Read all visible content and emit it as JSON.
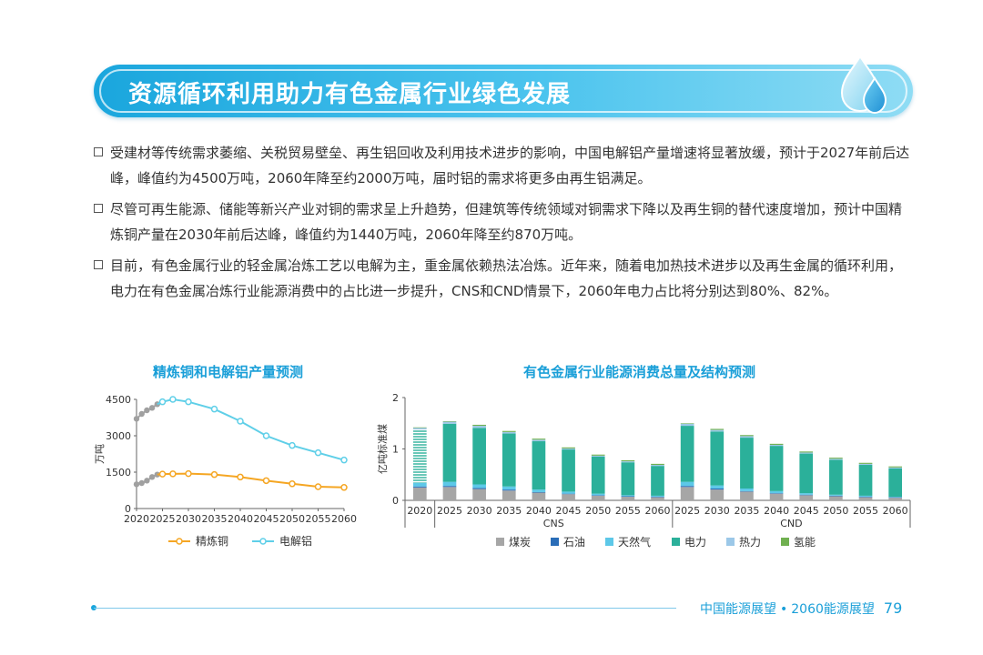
{
  "banner": {
    "title": "资源循环利用助力有色金属行业绿色发展"
  },
  "bullets": [
    "受建材等传统需求萎缩、关税贸易壁垒、再生铝回收及利用技术进步的影响，中国电解铝产量增速将显著放缓，预计于2027年前后达峰，峰值约为4500万吨，2060年降至约2000万吨，届时铝的需求将更多由再生铝满足。",
    "尽管可再生能源、储能等新兴产业对铜的需求呈上升趋势，但建筑等传统领域对铜需求下降以及再生铜的替代速度增加，预计中国精炼铜产量在2030年前后达峰，峰值约为1440万吨，2060年降至约870万吨。",
    "目前，有色金属行业的轻金属冶炼工艺以电解为主，重金属依赖热法冶炼。近年来，随着电加热技术进步以及再生金属的循环利用，电力在有色金属冶炼行业能源消费中的占比进一步提升，CNS和CND情景下，2060年电力占比将分别达到80%、82%。"
  ],
  "chart_data": [
    {
      "type": "line",
      "title": "精炼铜和电解铝产量预测",
      "ylabel": "万吨",
      "ylim": [
        0,
        4500
      ],
      "yticks": [
        "0",
        "1500",
        "3000",
        "4500"
      ],
      "categories": [
        "2020",
        "2025",
        "2030",
        "2035",
        "2040",
        "2045",
        "2050",
        "2055",
        "2060"
      ],
      "series": [
        {
          "name": "精炼铜",
          "color": "#f5a623",
          "history": {
            "x": [
              2020,
              2021,
              2022,
              2023,
              2024
            ],
            "y": [
              1000,
              1050,
              1150,
              1300,
              1400
            ]
          },
          "x": [
            2024,
            2025,
            2027,
            2030,
            2035,
            2040,
            2045,
            2050,
            2055,
            2060
          ],
          "y": [
            1400,
            1420,
            1430,
            1440,
            1400,
            1300,
            1150,
            1020,
            900,
            870
          ]
        },
        {
          "name": "电解铝",
          "color": "#5fcfe8",
          "history": {
            "x": [
              2020,
              2021,
              2022,
              2023,
              2024
            ],
            "y": [
              3700,
              3900,
              4050,
              4150,
              4300
            ]
          },
          "x": [
            2024,
            2025,
            2027,
            2030,
            2035,
            2040,
            2045,
            2050,
            2055,
            2060
          ],
          "y": [
            4300,
            4400,
            4500,
            4400,
            4100,
            3600,
            3000,
            2600,
            2300,
            2000
          ]
        }
      ]
    },
    {
      "type": "bar",
      "title": "有色金属行业能源消费总量及结构预测",
      "ylabel": "亿吨标准煤",
      "ylim": [
        0,
        2
      ],
      "yticks": [
        "0",
        "1",
        "2"
      ],
      "legend": [
        "煤炭",
        "石油",
        "天然气",
        "电力",
        "热力",
        "氢能"
      ],
      "colors": [
        "#a6a6a6",
        "#2a6db8",
        "#5dc8e8",
        "#2bb09a",
        "#9cc8e8",
        "#70b050"
      ],
      "groups": [
        {
          "name": "",
          "categories": [
            "2020"
          ]
        },
        {
          "name": "CNS",
          "categories": [
            "2025",
            "2030",
            "2035",
            "2040",
            "2045",
            "2050",
            "2055",
            "2060"
          ]
        },
        {
          "name": "CND",
          "categories": [
            "2025",
            "2030",
            "2035",
            "2040",
            "2045",
            "2050",
            "2055",
            "2060"
          ]
        }
      ],
      "series": [
        {
          "name": "煤炭",
          "values": [
            0.25,
            0.26,
            0.22,
            0.19,
            0.15,
            0.12,
            0.09,
            0.07,
            0.06,
            0.26,
            0.21,
            0.17,
            0.13,
            0.1,
            0.08,
            0.06,
            0.05
          ]
        },
        {
          "name": "石油",
          "values": [
            0.02,
            0.02,
            0.02,
            0.02,
            0.01,
            0.01,
            0.01,
            0.01,
            0.01,
            0.02,
            0.02,
            0.01,
            0.01,
            0.01,
            0.01,
            0.01,
            0.01
          ]
        },
        {
          "name": "天然气",
          "values": [
            0.07,
            0.08,
            0.07,
            0.06,
            0.05,
            0.04,
            0.03,
            0.02,
            0.02,
            0.08,
            0.06,
            0.05,
            0.04,
            0.03,
            0.02,
            0.02,
            0.01
          ]
        },
        {
          "name": "电力",
          "values": [
            1.04,
            1.13,
            1.1,
            1.03,
            0.94,
            0.82,
            0.72,
            0.64,
            0.58,
            1.09,
            1.05,
            0.99,
            0.88,
            0.77,
            0.68,
            0.6,
            0.55
          ]
        },
        {
          "name": "热力",
          "values": [
            0.03,
            0.04,
            0.04,
            0.03,
            0.03,
            0.02,
            0.02,
            0.02,
            0.02,
            0.04,
            0.03,
            0.03,
            0.02,
            0.02,
            0.02,
            0.02,
            0.02
          ]
        },
        {
          "name": "氢能",
          "values": [
            0.01,
            0.01,
            0.02,
            0.02,
            0.02,
            0.02,
            0.02,
            0.02,
            0.02,
            0.01,
            0.02,
            0.02,
            0.02,
            0.02,
            0.02,
            0.02,
            0.02
          ]
        }
      ]
    }
  ],
  "footer": {
    "title": "中国能源展望",
    "separator": "•",
    "book": "2060能源展望",
    "page": "79"
  }
}
